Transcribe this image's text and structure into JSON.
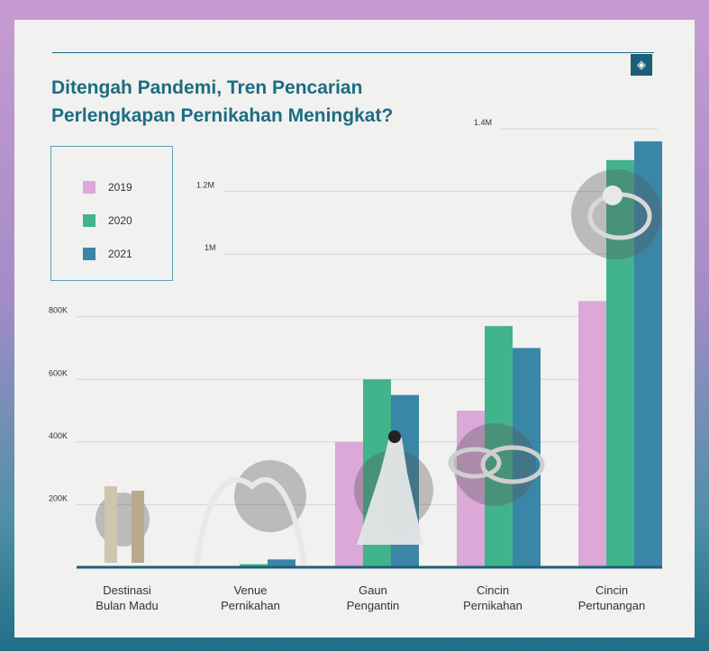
{
  "title": "Ditengah Pandemi, Tren Pencarian Perlengkapan Pernikahan Meningkat?",
  "badge_icon": "tag-icon",
  "colors": {
    "2019": "#dba8d8",
    "2020": "#41b38d",
    "2021": "#3a86a6",
    "accent": "#1b6d82"
  },
  "chart_data": {
    "type": "bar",
    "title": "Ditengah Pandemi, Tren Pencarian Perlengkapan Pernikahan Meningkat?",
    "xlabel": "",
    "ylabel": "",
    "categories": [
      "Destinasi Bulan Madu",
      "Venue Pernikahan",
      "Gaun Pengantin",
      "Cincin Pernikahan",
      "Cincin Pertunangan"
    ],
    "category_lines": [
      [
        "Destinasi",
        "Bulan Madu"
      ],
      [
        "Venue",
        "Pernikahan"
      ],
      [
        "Gaun",
        "Pengantin"
      ],
      [
        "Cincin",
        "Pernikahan"
      ],
      [
        "Cincin",
        "Pertunangan"
      ]
    ],
    "series": [
      {
        "name": "2019",
        "color": "#dba8d8",
        "values": [
          0,
          0,
          400000,
          500000,
          850000
        ]
      },
      {
        "name": "2020",
        "color": "#41b38d",
        "values": [
          0,
          10000,
          600000,
          770000,
          1300000
        ]
      },
      {
        "name": "2021",
        "color": "#3a86a6",
        "values": [
          0,
          25000,
          550000,
          700000,
          1360000
        ]
      }
    ],
    "ylim": [
      0,
      1400000
    ],
    "y_ticks": [
      {
        "value": 200000,
        "label": "200K"
      },
      {
        "value": 400000,
        "label": "400K"
      },
      {
        "value": 600000,
        "label": "600K"
      },
      {
        "value": 800000,
        "label": "800K"
      },
      {
        "value": 1000000,
        "label": "1M"
      },
      {
        "value": 1200000,
        "label": "1.2M"
      },
      {
        "value": 1400000,
        "label": "1.4M"
      }
    ],
    "grid": true,
    "legend_position": "top-left"
  },
  "legend": [
    {
      "label": "2019",
      "color": "#dba8d8"
    },
    {
      "label": "2020",
      "color": "#41b38d"
    },
    {
      "label": "2021",
      "color": "#3a86a6"
    }
  ]
}
